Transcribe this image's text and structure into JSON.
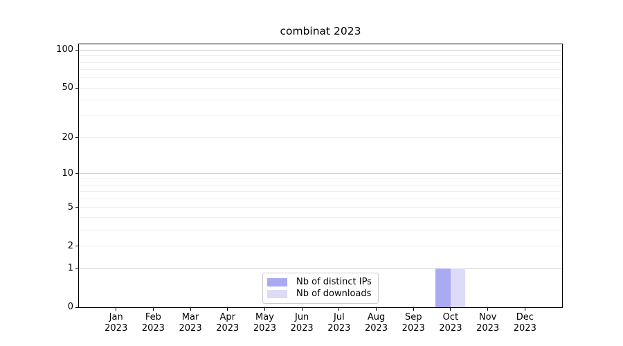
{
  "chart_data": {
    "type": "bar",
    "title": "combinat 2023",
    "x_year": "2023",
    "categories": [
      "Jan",
      "Feb",
      "Mar",
      "Apr",
      "May",
      "Jun",
      "Jul",
      "Aug",
      "Sep",
      "Oct",
      "Nov",
      "Dec"
    ],
    "series": [
      {
        "name": "Nb of distinct IPs",
        "color": "#aaaaf2",
        "values": [
          0,
          0,
          0,
          0,
          0,
          0,
          0,
          0,
          0,
          1,
          0,
          0
        ]
      },
      {
        "name": "Nb of downloads",
        "color": "#dcdcf8",
        "values": [
          0,
          0,
          0,
          0,
          0,
          0,
          0,
          0,
          0,
          1,
          0,
          0
        ]
      }
    ],
    "yscale": "log1p",
    "ylim": [
      0,
      111
    ],
    "yticks": [
      {
        "label": "100",
        "value": 100
      },
      {
        "label": "50",
        "value": 50
      },
      {
        "label": "20",
        "value": 20
      },
      {
        "label": "10",
        "value": 10
      },
      {
        "label": "5",
        "value": 5
      },
      {
        "label": "2",
        "value": 2
      },
      {
        "label": "1",
        "value": 1
      },
      {
        "label": "0",
        "value": 0
      }
    ],
    "grid": {
      "major_values": [
        1,
        10,
        100
      ],
      "minor_values": [
        2,
        3,
        4,
        5,
        6,
        7,
        8,
        9,
        20,
        30,
        40,
        50,
        60,
        70,
        80,
        90
      ],
      "major_color": "#cdcdcd",
      "minor_color": "#ececec"
    },
    "legend": {
      "entries": [
        "Nb of distinct IPs",
        "Nb of downloads"
      ],
      "position": "lower center"
    }
  }
}
